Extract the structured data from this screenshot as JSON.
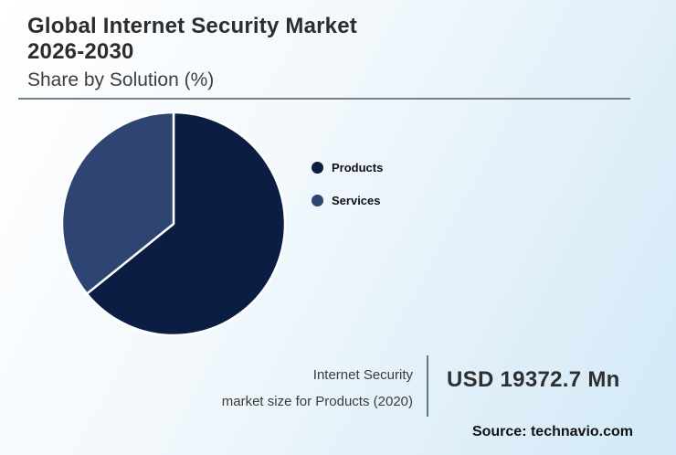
{
  "header": {
    "title_line1": "Global Internet Security Market",
    "title_line2": "2026-2030",
    "subtitle": "Share by Solution (%)"
  },
  "chart_data": {
    "type": "pie",
    "title": "Global Internet Security Market 2026-2030 — Share by Solution (%)",
    "units": "%",
    "start_angle_deg_from_top": 0,
    "direction": "clockwise",
    "legend_position": "right",
    "slices": [
      {
        "label": "Products",
        "value": 64.2,
        "color": "#0b1d42"
      },
      {
        "label": "Services",
        "value": 35.8,
        "color": "#2e4573"
      }
    ],
    "slice_stroke_color": "#ffffff"
  },
  "footer": {
    "stat_label_line1": "Internet Security",
    "stat_label_line2": "market size for Products (2020)",
    "stat_value": "USD 19372.7 Mn",
    "source": "Source: technavio.com"
  },
  "colors": {
    "background_start": "#ffffff",
    "background_end": "#d2e9f7",
    "header_rule": "#7b8084",
    "stat_divider": "#62788c",
    "title_text": "#2b2d2f",
    "body_text": "#3b3b3b"
  }
}
